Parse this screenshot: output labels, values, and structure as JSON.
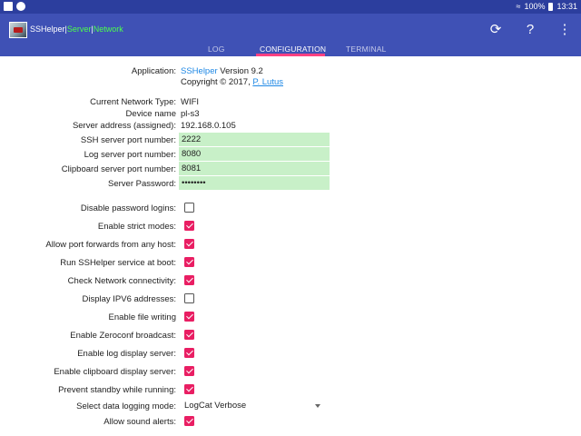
{
  "status_bar": {
    "battery": "100%",
    "time": "13:31"
  },
  "app_bar": {
    "title_app": "SSHelper",
    "title_sep1": "|",
    "title_server": "Server",
    "title_sep2": "|",
    "title_network": "Network",
    "colors": {
      "bar": "#3f51b5",
      "accent": "#ff4081",
      "green": "#4cff4c"
    }
  },
  "tabs": [
    {
      "label": "LOG"
    },
    {
      "label": "CONFIGURATION"
    },
    {
      "label": "TERMINAL"
    }
  ],
  "info": {
    "application_label": "Application:",
    "app_name": "SSHelper",
    "version": " Version 9.2",
    "copyright": "Copyright © 2017, ",
    "author": "P. Lutus",
    "network_type_label": "Current Network Type:",
    "network_type": "WIFI",
    "device_name_label": "Device name",
    "device_name": "pl-s3",
    "server_address_label": "Server address (assigned):",
    "server_address": "192.168.0.105"
  },
  "fields": {
    "ssh_port_label": "SSH server port number:",
    "ssh_port": "2222",
    "log_port_label": "Log server port number:",
    "log_port": "8080",
    "clipboard_port_label": "Clipboard server port number:",
    "clipboard_port": "8081",
    "password_label": "Server Password:",
    "password": "••••••••"
  },
  "options": [
    {
      "label": "Disable password logins:",
      "checked": false
    },
    {
      "label": "Enable strict modes:",
      "checked": true
    },
    {
      "label": "Allow port forwards from any host:",
      "checked": true
    },
    {
      "label": "Run SSHelper service at boot:",
      "checked": true
    },
    {
      "label": "Check Network connectivity:",
      "checked": true
    },
    {
      "label": "Display IPV6 addresses:",
      "checked": false
    },
    {
      "label": "Enable file writing",
      "checked": true
    },
    {
      "label": "Enable Zeroconf broadcast:",
      "checked": true
    },
    {
      "label": "Enable log display server:",
      "checked": true
    },
    {
      "label": "Enable clipboard display server:",
      "checked": true
    },
    {
      "label": "Prevent standby while running:",
      "checked": true
    }
  ],
  "logging": {
    "label": "Select data logging mode:",
    "value": "LogCat Verbose"
  },
  "sound": {
    "label": "Allow sound alerts:",
    "checked": true
  }
}
